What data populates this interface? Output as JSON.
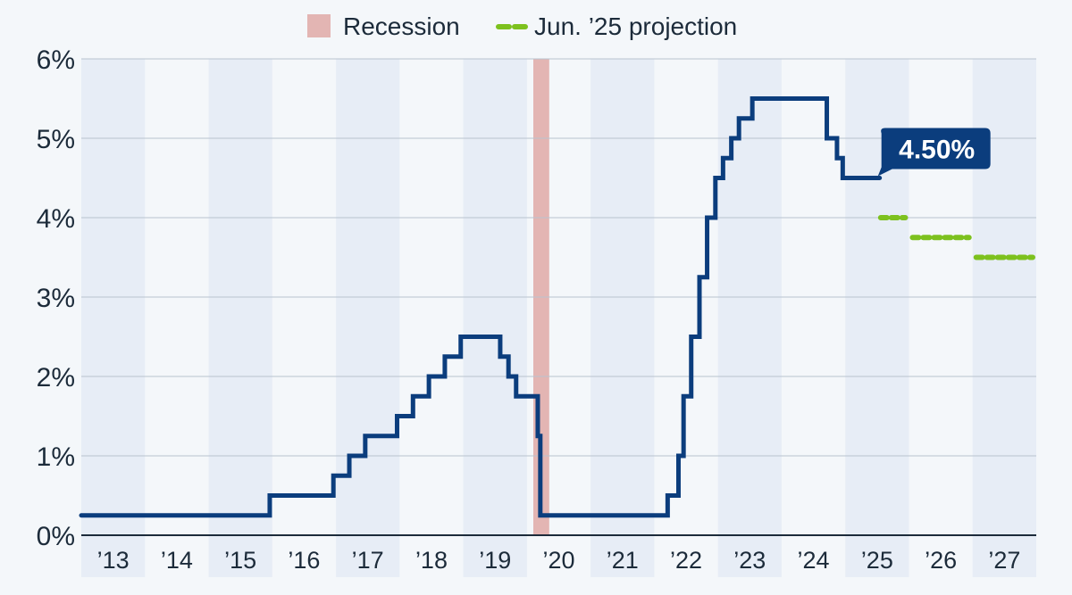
{
  "chart_data": {
    "type": "line",
    "title": "",
    "xlabel": "",
    "ylabel": "",
    "x_range": [
      2013.0,
      2028.0
    ],
    "ylim": [
      0,
      6
    ],
    "grid": true,
    "legend_position": "top-center",
    "y_ticks": [
      {
        "value": 0,
        "label": "0%"
      },
      {
        "value": 1,
        "label": "1%"
      },
      {
        "value": 2,
        "label": "2%"
      },
      {
        "value": 3,
        "label": "3%"
      },
      {
        "value": 4,
        "label": "4%"
      },
      {
        "value": 5,
        "label": "5%"
      },
      {
        "value": 6,
        "label": "6%"
      }
    ],
    "x_ticks": [
      {
        "year": 2013,
        "label": "’13"
      },
      {
        "year": 2014,
        "label": "’14"
      },
      {
        "year": 2015,
        "label": "’15"
      },
      {
        "year": 2016,
        "label": "’16"
      },
      {
        "year": 2017,
        "label": "’17"
      },
      {
        "year": 2018,
        "label": "’18"
      },
      {
        "year": 2019,
        "label": "’19"
      },
      {
        "year": 2020,
        "label": "’20"
      },
      {
        "year": 2021,
        "label": "’21"
      },
      {
        "year": 2022,
        "label": "’22"
      },
      {
        "year": 2023,
        "label": "’23"
      },
      {
        "year": 2024,
        "label": "’24"
      },
      {
        "year": 2025,
        "label": "’25"
      },
      {
        "year": 2026,
        "label": "’26"
      },
      {
        "year": 2027,
        "label": "’27"
      }
    ],
    "legend": [
      {
        "label": "Recession",
        "color": "#e3b5b3",
        "style": "box"
      },
      {
        "label": "Jun. ’25 projection",
        "color": "#7dc11e",
        "style": "dash"
      }
    ],
    "recession": {
      "start": 2020.1,
      "end": 2020.35
    },
    "series": [
      {
        "color": "#0b3d7d",
        "step": true,
        "points": [
          {
            "x": 2013.0,
            "y": 0.25
          },
          {
            "x": 2015.96,
            "y": 0.5
          },
          {
            "x": 2016.96,
            "y": 0.75
          },
          {
            "x": 2017.21,
            "y": 1.0
          },
          {
            "x": 2017.46,
            "y": 1.25
          },
          {
            "x": 2017.96,
            "y": 1.5
          },
          {
            "x": 2018.21,
            "y": 1.75
          },
          {
            "x": 2018.46,
            "y": 2.0
          },
          {
            "x": 2018.71,
            "y": 2.25
          },
          {
            "x": 2018.96,
            "y": 2.5
          },
          {
            "x": 2019.58,
            "y": 2.25
          },
          {
            "x": 2019.71,
            "y": 2.0
          },
          {
            "x": 2019.83,
            "y": 1.75
          },
          {
            "x": 2020.17,
            "y": 1.25
          },
          {
            "x": 2020.21,
            "y": 0.25
          },
          {
            "x": 2022.21,
            "y": 0.5
          },
          {
            "x": 2022.38,
            "y": 1.0
          },
          {
            "x": 2022.46,
            "y": 1.75
          },
          {
            "x": 2022.58,
            "y": 2.5
          },
          {
            "x": 2022.71,
            "y": 3.25
          },
          {
            "x": 2022.83,
            "y": 4.0
          },
          {
            "x": 2022.96,
            "y": 4.5
          },
          {
            "x": 2023.08,
            "y": 4.75
          },
          {
            "x": 2023.21,
            "y": 5.0
          },
          {
            "x": 2023.33,
            "y": 5.25
          },
          {
            "x": 2023.54,
            "y": 5.5
          },
          {
            "x": 2024.71,
            "y": 5.0
          },
          {
            "x": 2024.87,
            "y": 4.75
          },
          {
            "x": 2024.96,
            "y": 4.5
          },
          {
            "x": 2025.54,
            "y": 4.5
          }
        ]
      }
    ],
    "projection": [
      {
        "x_start": 2025.5,
        "x_end": 2026.0,
        "y": 4.0
      },
      {
        "x_start": 2026.0,
        "x_end": 2027.0,
        "y": 3.75
      },
      {
        "x_start": 2027.0,
        "x_end": 2028.0,
        "y": 3.5
      }
    ],
    "annotation": {
      "label": "4.50%",
      "x": 2025.54,
      "y": 4.5
    }
  }
}
